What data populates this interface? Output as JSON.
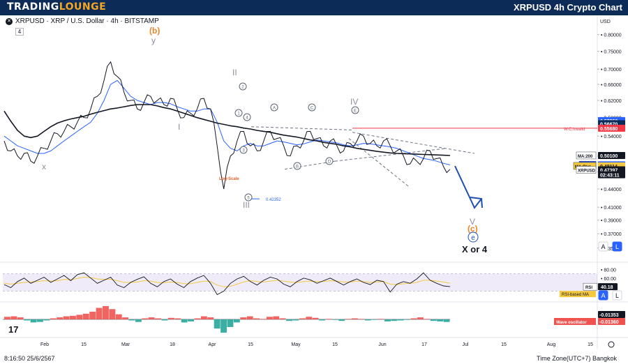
{
  "header": {
    "brand_part1": "TRADING",
    "brand_part2": "LOUNGE",
    "chart_title": "XRPUSD 4h Crypto Chart"
  },
  "symbol_info": {
    "text": "XRPUSD · XRP / U.S. Dollar · 4h · BITSTAMP",
    "interval_badge": "4"
  },
  "currency_label": "USD",
  "scale_buttons": {
    "auto": "A",
    "log": "L"
  },
  "footer": {
    "datetime": "8:16:50 25/6/2567",
    "timezone": "Time Zone(UTC+7) Bangkok"
  },
  "colors": {
    "banner": "#0c2b57",
    "price": "#131722",
    "ma200": "#131722",
    "ma35": "#2962ff",
    "ma_plot": "#f5c842",
    "wc_invalid": "#f23645",
    "rsi": "#131722",
    "rsi_ma": "#f5c842",
    "wave_up": "#26a69a",
    "wave_down": "#ef5350",
    "wave_label": "#8a8f9a",
    "count_orange": "#e8872a",
    "arrow": "#1e4fb0"
  },
  "chart_data": [
    {
      "type": "line",
      "name": "price_panel",
      "log_scale": true,
      "x_axis": {
        "ticks": [
          "Feb",
          "15",
          "Mar",
          "18",
          "Apr",
          "15",
          "May",
          "15",
          "Jun",
          "17",
          "Jul",
          "15",
          "Aug",
          "15"
        ]
      },
      "y_axis": {
        "ticks": [
          "0.80000",
          "0.75000",
          "0.70000",
          "0.66000",
          "0.62000",
          "0.58000",
          "0.54000",
          "0.50000",
          "0.47000",
          "0.44000",
          "0.41000",
          "0.39000",
          "0.37000",
          "0.35000"
        ],
        "range": [
          0.335,
          0.83
        ]
      },
      "series": [
        {
          "name": "XRPUSD",
          "values": [
            0.53,
            0.51,
            0.5,
            0.505,
            0.49,
            0.5,
            0.515,
            0.53,
            0.545,
            0.55,
            0.56,
            0.57,
            0.58,
            0.6,
            0.63,
            0.67,
            0.72,
            0.68,
            0.64,
            0.62,
            0.6,
            0.615,
            0.63,
            0.62,
            0.61,
            0.625,
            0.6,
            0.58,
            0.59,
            0.6,
            0.625,
            0.6,
            0.52,
            0.44,
            0.5,
            0.53,
            0.55,
            0.52,
            0.51,
            0.53,
            0.55,
            0.535,
            0.52,
            0.5,
            0.52,
            0.53,
            0.55,
            0.535,
            0.52,
            0.53,
            0.52,
            0.51,
            0.525,
            0.53,
            0.54,
            0.525,
            0.52,
            0.53,
            0.52,
            0.51,
            0.5,
            0.485,
            0.49,
            0.495,
            0.51,
            0.495,
            0.48,
            0.475
          ]
        },
        {
          "name": "MA:200",
          "values": [
            0.595,
            0.572,
            0.552,
            0.54,
            0.537,
            0.54,
            0.55,
            0.56,
            0.568,
            0.573,
            0.577,
            0.58,
            0.583,
            0.588,
            0.592,
            0.596,
            0.6,
            0.602,
            0.605,
            0.608,
            0.61,
            0.61,
            0.61,
            0.607,
            0.603,
            0.6,
            0.595,
            0.59,
            0.585,
            0.58,
            0.576,
            0.572,
            0.568,
            0.565,
            0.562,
            0.56,
            0.557,
            0.555,
            0.552,
            0.55,
            0.548,
            0.545,
            0.542,
            0.54,
            0.538,
            0.535,
            0.532,
            0.53,
            0.527,
            0.525,
            0.523,
            0.52,
            0.518,
            0.515,
            0.513,
            0.511,
            0.509,
            0.5075,
            0.506,
            0.505,
            0.5045,
            0.504,
            0.5035,
            0.503,
            0.5025,
            0.502,
            0.5015,
            0.501
          ]
        },
        {
          "name": "MA:35",
          "values": [
            0.54,
            0.53,
            0.52,
            0.515,
            0.51,
            0.505,
            0.505,
            0.51,
            0.52,
            0.53,
            0.54,
            0.55,
            0.56,
            0.57,
            0.59,
            0.62,
            0.66,
            0.67,
            0.65,
            0.63,
            0.62,
            0.615,
            0.61,
            0.615,
            0.615,
            0.612,
            0.605,
            0.6,
            0.595,
            0.595,
            0.6,
            0.6,
            0.57,
            0.53,
            0.515,
            0.51,
            0.52,
            0.525,
            0.52,
            0.52,
            0.525,
            0.53,
            0.528,
            0.525,
            0.522,
            0.524,
            0.528,
            0.532,
            0.53,
            0.528,
            0.526,
            0.522,
            0.52,
            0.522,
            0.525,
            0.524,
            0.522,
            0.52,
            0.518,
            0.515,
            0.51,
            0.505,
            0.5,
            0.495,
            0.493,
            0.49,
            0.486,
            0.483
          ]
        }
      ],
      "price_labels": [
        {
          "text": "0.57352",
          "value": 0.57352,
          "color": "#2962ff"
        },
        {
          "text": "0.56670",
          "value": 0.5667,
          "color": "#0c2b57"
        },
        {
          "text": "0.55680",
          "value": 0.5568,
          "color": "#f23645"
        },
        {
          "text": "0.50100",
          "value": 0.501,
          "color": "#131722",
          "tag": "MA:200"
        },
        {
          "text": "0.48321",
          "value": 0.48321,
          "color": "#2962ff",
          "tag": "MA:35"
        },
        {
          "text": "0.48114",
          "value": 0.48114,
          "color": "#f5c842",
          "tag": "MA:Plot"
        },
        {
          "text": "0.47397",
          "value": 0.47397,
          "color": "#131722",
          "tag": "XRPUSD"
        },
        {
          "text": "02:43:11",
          "value": 0.465,
          "color": "#131722"
        }
      ],
      "levels": [
        {
          "label": "W.C.Invalid",
          "value": 0.5568
        }
      ],
      "annotations": [
        {
          "text": "(b)",
          "kind": "count_orange"
        },
        {
          "text": "y",
          "kind": "grey_letter"
        },
        {
          "text": "x",
          "kind": "grey_letter"
        },
        {
          "text": "I",
          "kind": "grey_letter"
        },
        {
          "text": "II",
          "kind": "grey_letter"
        },
        {
          "text": "III",
          "kind": "grey_letter"
        },
        {
          "text": "IV",
          "kind": "grey_letter"
        },
        {
          "text": "V",
          "kind": "grey_letter"
        },
        {
          "text": "(c)",
          "kind": "count_orange"
        },
        {
          "text": "X or 4",
          "kind": "bold_black"
        },
        {
          "text": "Log-Scale",
          "kind": "note_orange"
        },
        {
          "text": "0.42352",
          "kind": "price_mark",
          "value": 0.42352
        }
      ],
      "circled_labels": [
        "1",
        "2",
        "3",
        "4",
        "5",
        "A",
        "B",
        "C",
        "D",
        "E",
        "e"
      ]
    },
    {
      "type": "line",
      "name": "RSI",
      "y_axis": {
        "ticks": [
          "80.00",
          "60.00",
          "40.00"
        ],
        "range": [
          10,
          90
        ]
      },
      "bands": [
        30,
        70
      ],
      "series": [
        {
          "name": "RSI",
          "values": [
            45,
            38,
            52,
            60,
            48,
            55,
            62,
            50,
            58,
            66,
            54,
            68,
            72,
            60,
            48,
            55,
            62,
            44,
            38,
            50,
            57,
            63,
            48,
            40,
            52,
            58,
            46,
            38,
            52,
            60,
            66,
            48,
            22,
            30,
            48,
            58,
            64,
            52,
            44,
            55,
            62,
            58,
            46,
            40,
            52,
            60,
            56,
            48,
            54,
            60,
            52,
            44,
            52,
            58,
            50,
            45,
            55,
            52,
            28,
            46,
            52,
            48,
            58,
            72,
            55,
            48,
            42,
            40.18
          ]
        },
        {
          "name": "RSI-based MA",
          "values": [
            48,
            46,
            48,
            50,
            51,
            52,
            54,
            53,
            54,
            57,
            56,
            59,
            62,
            61,
            58,
            57,
            57,
            54,
            50,
            50,
            51,
            54,
            53,
            50,
            49,
            51,
            50,
            47,
            47,
            50,
            53,
            52,
            44,
            40,
            41,
            46,
            51,
            54,
            52,
            51,
            53,
            55,
            53,
            51,
            50,
            52,
            53,
            52,
            52,
            54,
            53,
            51,
            51,
            53,
            52,
            50,
            51,
            52,
            46,
            45,
            47,
            48,
            50,
            55,
            55,
            53,
            51,
            48
          ]
        }
      ],
      "value_label": "40.18",
      "ma_label": "RSI-based MA",
      "panel_label": "RSI"
    },
    {
      "type": "bar",
      "name": "Wave oscillator",
      "y_axis": {
        "ticks": [],
        "range": [
          -0.06,
          0.06
        ]
      },
      "values": [
        0.01,
        0.012,
        0.008,
        -0.004,
        -0.012,
        -0.01,
        -0.004,
        0.004,
        0.008,
        0.012,
        0.014,
        0.018,
        0.022,
        0.03,
        0.045,
        0.052,
        0.04,
        0.02,
        0.008,
        -0.004,
        -0.01,
        0.004,
        0.008,
        0.004,
        -0.004,
        0.006,
        0.004,
        -0.012,
        -0.008,
        0.004,
        0.012,
        0.008,
        -0.036,
        -0.052,
        -0.03,
        -0.012,
        0.008,
        0.012,
        0.004,
        0.002,
        0.01,
        0.012,
        0.004,
        -0.006,
        -0.004,
        0.004,
        0.01,
        0.006,
        -0.004,
        0.002,
        -0.002,
        -0.006,
        0.002,
        0.004,
        0.002,
        -0.004,
        -0.002,
        0.002,
        -0.008,
        -0.006,
        -0.004,
        -0.002,
        0.004,
        0.008,
        0.002,
        -0.006,
        -0.008,
        -0.01
      ],
      "value_labels": [
        {
          "text": "-0.01353",
          "color": "#131722"
        },
        {
          "text": "-0.01360",
          "color": "#ef5350"
        }
      ],
      "panel_label": "Wave oscillator"
    }
  ]
}
